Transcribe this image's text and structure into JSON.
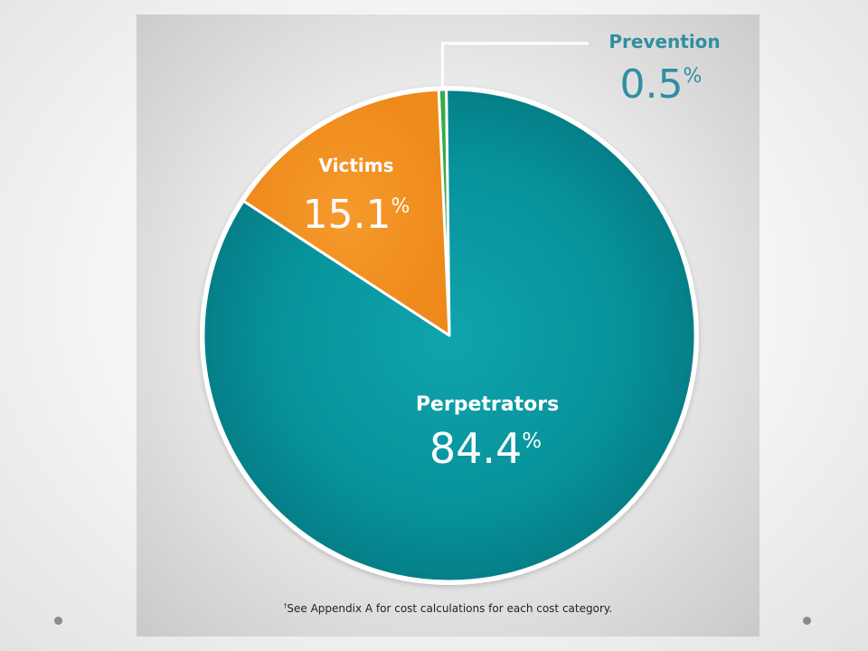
{
  "chart_data": {
    "type": "pie",
    "slices": [
      {
        "label": "Prevention",
        "value": 0.5,
        "value_text": "0.5",
        "unit": "%",
        "color": "#3aaa47"
      },
      {
        "label": "Perpetrators",
        "value": 84.4,
        "value_text": "84.4",
        "unit": "%",
        "color": "#0a929b"
      },
      {
        "label": "Victims",
        "value": 15.1,
        "value_text": "15.1",
        "unit": "%",
        "color": "#f39020"
      }
    ]
  },
  "footnote": {
    "marker": "†",
    "text": "See Appendix A for cost calculations for each cost category."
  },
  "colors": {
    "prevention_label": "#2f8fa0",
    "slice_label": "#ffffff",
    "separator": "#ffffff"
  }
}
